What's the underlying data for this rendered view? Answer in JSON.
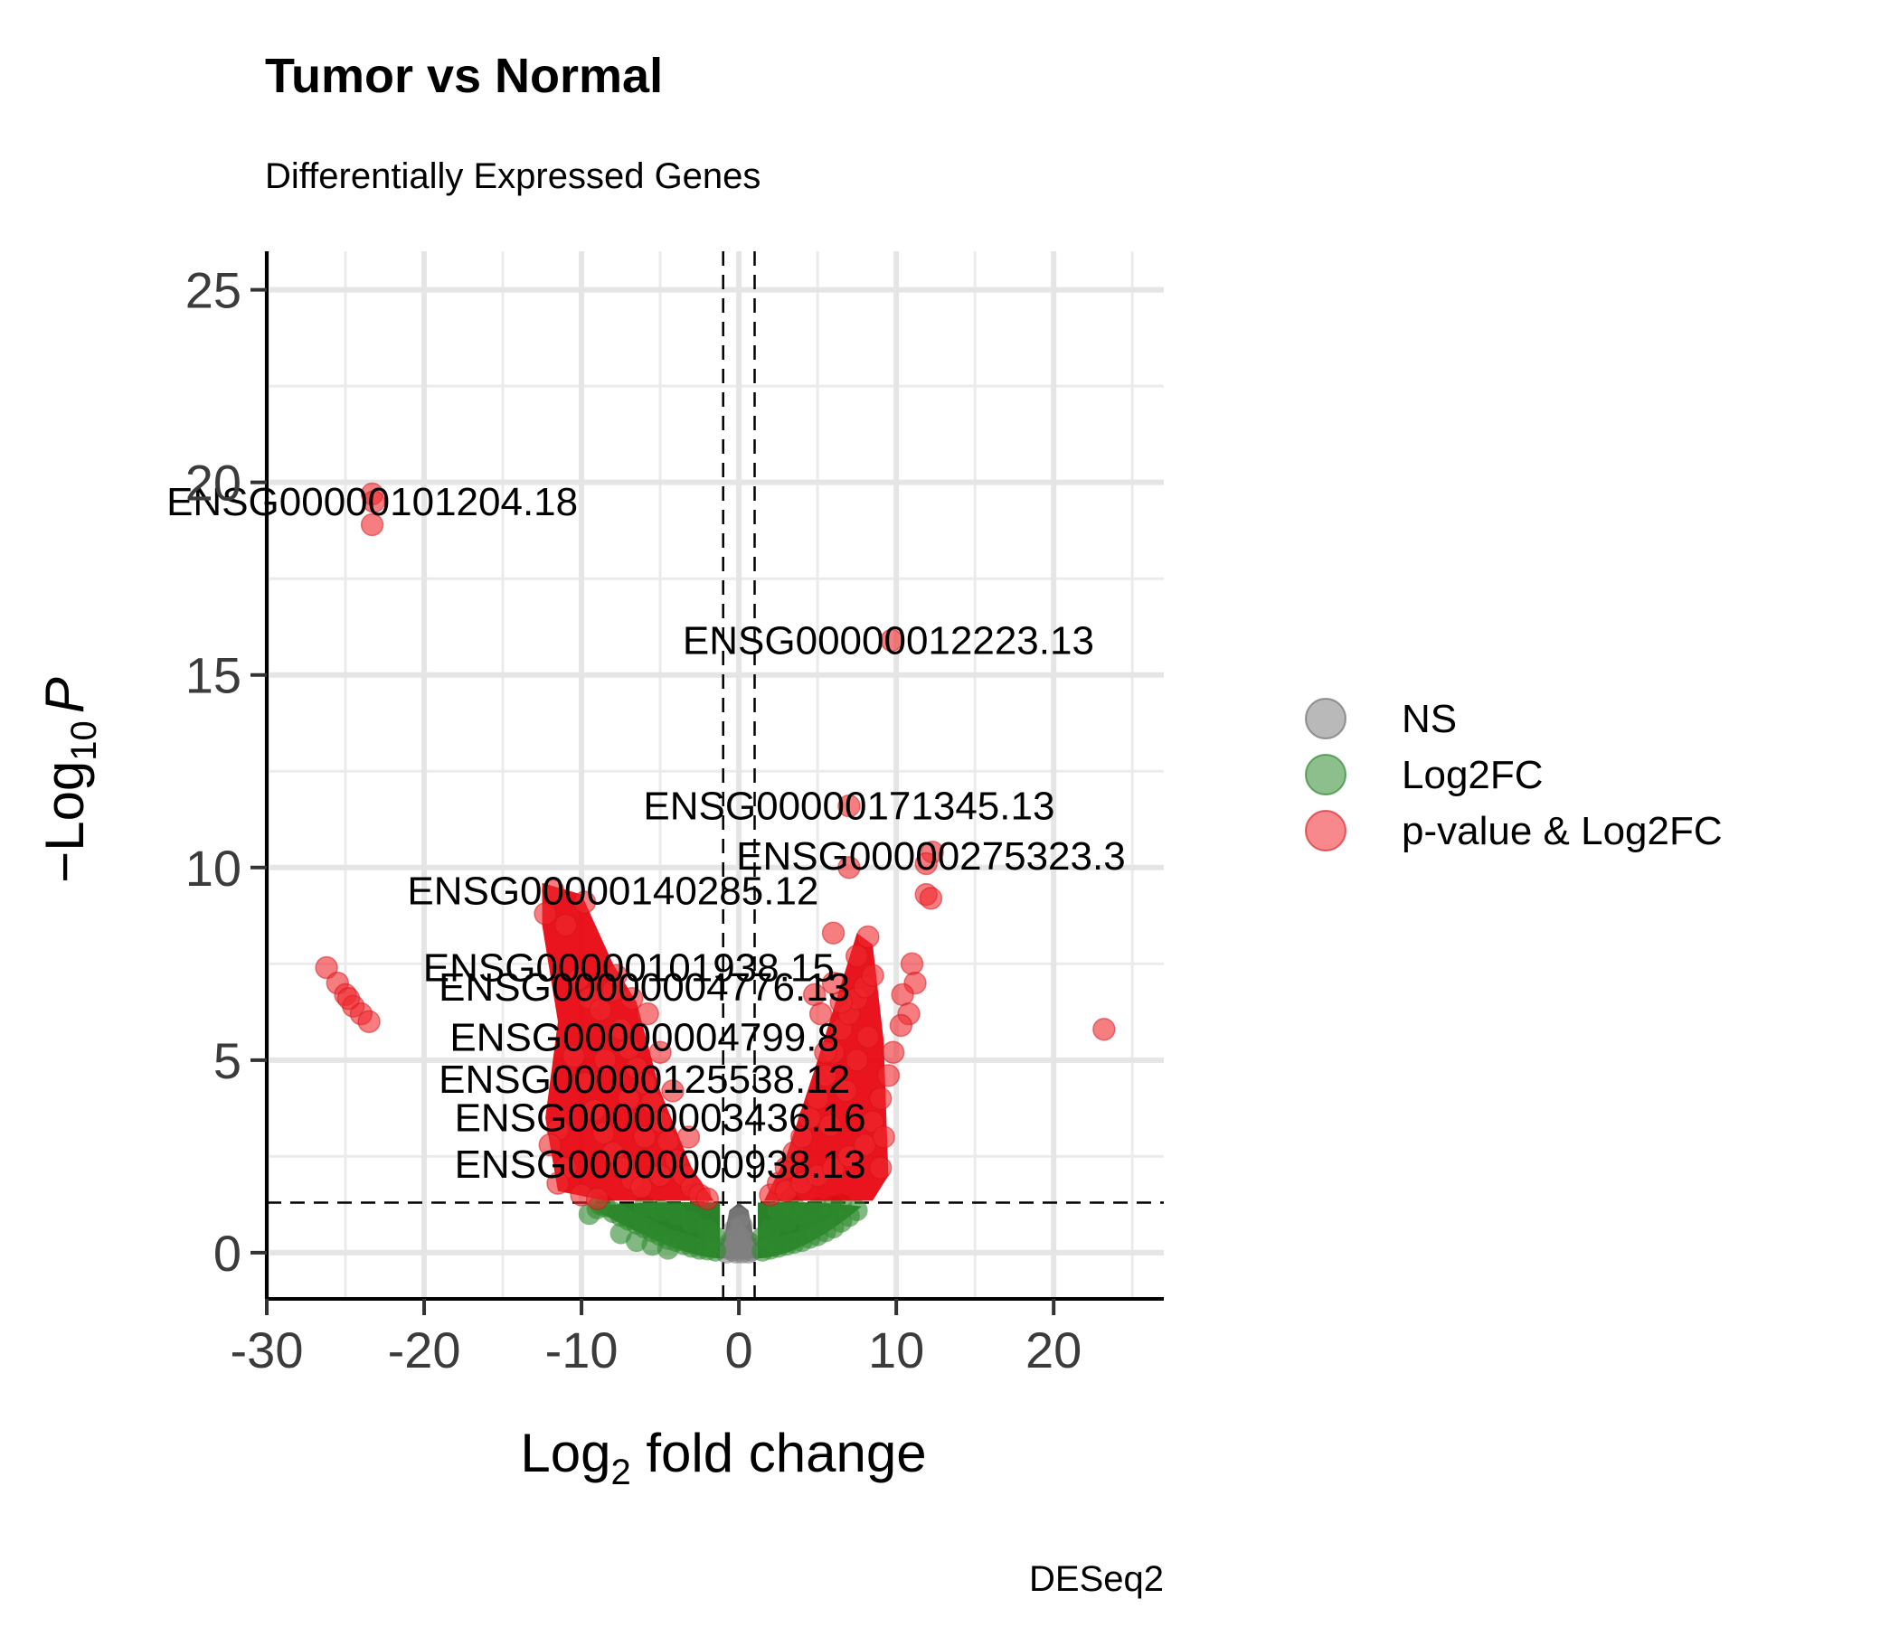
{
  "chart_data": {
    "type": "scatter",
    "title": "Tumor vs Normal",
    "subtitle": "Differentially Expressed Genes",
    "caption": "DESeq2",
    "xlabel": {
      "base": "Log",
      "sub": "2",
      "rest": " fold change"
    },
    "ylabel": {
      "prefix": "−Log",
      "sub": "10",
      "italic": "P"
    },
    "xlim": [
      -30,
      27
    ],
    "ylim": [
      -1.2,
      26
    ],
    "xticks": [
      -30,
      -20,
      -10,
      0,
      10,
      20
    ],
    "xtick_labels": [
      "-30",
      "-20",
      "-10",
      "0",
      "10",
      "20"
    ],
    "yticks": [
      0,
      5,
      10,
      15,
      20,
      25
    ],
    "ytick_labels": [
      "0",
      "5",
      "10",
      "15",
      "20",
      "25"
    ],
    "grid": true,
    "cutoffs": {
      "log2fc": [
        -1,
        1
      ],
      "neg_log10_p": 1.3
    },
    "legend": {
      "position": "right",
      "items": [
        {
          "label": "NS",
          "color": "#808080"
        },
        {
          "label": "Log2FC",
          "color": "#2e8b2e"
        },
        {
          "label": "p-value & Log2FC",
          "color": "#f0282d"
        }
      ]
    },
    "labeled_points": [
      {
        "label": "ENSG00000101204.18",
        "x": -23.3,
        "y": 19.5
      },
      {
        "label": "ENSG00000012223.13",
        "x": 9.5,
        "y": 15.9
      },
      {
        "label": "ENSG00000171345.13",
        "x": 7.0,
        "y": 11.6
      },
      {
        "label": "ENSG00000275323.3",
        "x": 12.2,
        "y": 10.3
      },
      {
        "label": "ENSG00000140285.12",
        "x": -8.0,
        "y": 9.4
      },
      {
        "label": "ENSG00000101938.15",
        "x": -7.0,
        "y": 7.4
      },
      {
        "label": "ENSG00000004776.13",
        "x": -6.0,
        "y": 6.9
      },
      {
        "label": "ENSG00000004799.8",
        "x": -6.0,
        "y": 5.6
      },
      {
        "label": "ENSG00000125538.12",
        "x": -6.0,
        "y": 4.5
      },
      {
        "label": "ENSG00000003436.16",
        "x": -5.0,
        "y": 3.5
      },
      {
        "label": "ENSG00000000938.13",
        "x": -5.0,
        "y": 2.3
      }
    ],
    "series": [
      {
        "name": "p-value & Log2FC",
        "points": [
          [
            -23.3,
            19.7
          ],
          [
            -23.2,
            19.5
          ],
          [
            -23.3,
            18.9
          ],
          [
            9.7,
            15.9
          ],
          [
            7.0,
            11.6
          ],
          [
            12.3,
            10.4
          ],
          [
            11.9,
            10.1
          ],
          [
            7.0,
            10.0
          ],
          [
            -11.8,
            9.4
          ],
          [
            -12.3,
            8.8
          ],
          [
            -9.8,
            9.1
          ],
          [
            11.9,
            9.3
          ],
          [
            12.2,
            9.2
          ],
          [
            -11.0,
            8.5
          ],
          [
            6.0,
            8.3
          ],
          [
            8.2,
            8.2
          ],
          [
            7.5,
            7.7
          ],
          [
            11.0,
            7.5
          ],
          [
            11.2,
            7.0
          ],
          [
            10.4,
            6.7
          ],
          [
            -26.2,
            7.4
          ],
          [
            -25.5,
            7.0
          ],
          [
            -25.0,
            6.7
          ],
          [
            -24.5,
            6.4
          ],
          [
            -24.0,
            6.2
          ],
          [
            -23.5,
            6.0
          ],
          [
            -24.8,
            6.6
          ],
          [
            23.2,
            5.8
          ],
          [
            10.8,
            6.2
          ],
          [
            10.3,
            5.9
          ],
          [
            9.8,
            5.2
          ],
          [
            9.5,
            4.6
          ],
          [
            -10.2,
            7.1
          ],
          [
            -9.5,
            6.6
          ],
          [
            -8.8,
            6.3
          ],
          [
            -8.0,
            6.8
          ],
          [
            -7.5,
            5.8
          ],
          [
            -7.0,
            5.3
          ],
          [
            -6.5,
            4.8
          ],
          [
            -6.0,
            4.4
          ],
          [
            -5.5,
            3.9
          ],
          [
            -5.0,
            3.4
          ],
          [
            -4.5,
            2.9
          ],
          [
            -4.0,
            2.4
          ],
          [
            -3.5,
            2.0
          ],
          [
            -3.0,
            1.7
          ],
          [
            -2.5,
            1.5
          ],
          [
            -2.0,
            1.4
          ],
          [
            -10.5,
            5.1
          ],
          [
            -9.8,
            4.4
          ],
          [
            -9.2,
            3.7
          ],
          [
            -8.6,
            3.1
          ],
          [
            -8.0,
            2.6
          ],
          [
            -7.4,
            2.2
          ],
          [
            -6.8,
            1.9
          ],
          [
            -6.2,
            1.7
          ],
          [
            -11.5,
            3.2
          ],
          [
            -12.0,
            2.8
          ],
          [
            -11.0,
            2.2
          ],
          [
            -11.5,
            1.8
          ],
          [
            -10.0,
            1.5
          ],
          [
            -9.0,
            1.4
          ],
          [
            -7.0,
            4.0
          ],
          [
            -6.0,
            3.0
          ],
          [
            -5.0,
            2.0
          ],
          [
            -8.5,
            5.0
          ],
          [
            -7.8,
            7.2
          ],
          [
            -6.8,
            6.6
          ],
          [
            -5.8,
            6.2
          ],
          [
            -5.0,
            5.2
          ],
          [
            -4.2,
            4.2
          ],
          [
            -3.2,
            3.0
          ],
          [
            2.0,
            1.5
          ],
          [
            2.5,
            1.8
          ],
          [
            3.0,
            2.2
          ],
          [
            3.5,
            2.6
          ],
          [
            4.0,
            3.0
          ],
          [
            4.5,
            3.5
          ],
          [
            5.0,
            4.0
          ],
          [
            5.5,
            4.6
          ],
          [
            6.0,
            5.2
          ],
          [
            6.5,
            5.8
          ],
          [
            7.0,
            6.2
          ],
          [
            7.5,
            6.6
          ],
          [
            8.0,
            6.9
          ],
          [
            8.5,
            7.2
          ],
          [
            3.0,
            1.6
          ],
          [
            4.0,
            1.8
          ],
          [
            5.0,
            2.0
          ],
          [
            6.0,
            2.2
          ],
          [
            7.0,
            2.5
          ],
          [
            8.0,
            2.8
          ],
          [
            8.5,
            3.4
          ],
          [
            9.0,
            4.0
          ],
          [
            9.2,
            3.0
          ],
          [
            9.0,
            2.2
          ],
          [
            5.5,
            5.2
          ],
          [
            6.5,
            6.5
          ],
          [
            5.8,
            3.3
          ],
          [
            6.8,
            4.2
          ],
          [
            7.5,
            5.0
          ],
          [
            8.2,
            5.6
          ],
          [
            4.8,
            6.7
          ],
          [
            5.2,
            6.2
          ],
          [
            6.0,
            7.0
          ]
        ]
      },
      {
        "name": "Log2FC",
        "points": [
          [
            -9.0,
            1.15
          ],
          [
            -8.5,
            1.2
          ],
          [
            -8.0,
            1.05
          ],
          [
            -7.5,
            0.95
          ],
          [
            -7.0,
            0.85
          ],
          [
            -6.5,
            0.75
          ],
          [
            -6.0,
            0.65
          ],
          [
            -5.5,
            0.55
          ],
          [
            -5.0,
            0.45
          ],
          [
            -4.5,
            0.35
          ],
          [
            -4.0,
            0.3
          ],
          [
            -3.5,
            0.22
          ],
          [
            -3.0,
            0.15
          ],
          [
            -2.5,
            0.1
          ],
          [
            -2.0,
            0.08
          ],
          [
            -1.5,
            0.05
          ],
          [
            -6.0,
            1.2
          ],
          [
            -5.0,
            1.1
          ],
          [
            -4.0,
            1.0
          ],
          [
            -3.0,
            0.8
          ],
          [
            -2.0,
            0.6
          ],
          [
            -1.5,
            0.4
          ],
          [
            -7.5,
            0.5
          ],
          [
            -6.5,
            0.3
          ],
          [
            -5.5,
            0.2
          ],
          [
            -4.5,
            0.1
          ],
          [
            1.5,
            0.05
          ],
          [
            2.0,
            0.1
          ],
          [
            2.5,
            0.15
          ],
          [
            3.0,
            0.2
          ],
          [
            3.5,
            0.25
          ],
          [
            4.0,
            0.3
          ],
          [
            4.5,
            0.38
          ],
          [
            5.0,
            0.45
          ],
          [
            5.5,
            0.55
          ],
          [
            6.0,
            0.65
          ],
          [
            6.5,
            0.8
          ],
          [
            7.0,
            0.95
          ],
          [
            7.5,
            1.1
          ],
          [
            2.0,
            0.6
          ],
          [
            3.0,
            0.8
          ],
          [
            4.0,
            1.0
          ],
          [
            5.0,
            1.15
          ],
          [
            6.0,
            1.2
          ],
          [
            1.5,
            0.4
          ],
          [
            2.5,
            1.1
          ],
          [
            3.5,
            1.2
          ],
          [
            4.5,
            0.7
          ],
          [
            5.5,
            0.9
          ],
          [
            6.5,
            1.25
          ],
          [
            -8.8,
            1.25
          ],
          [
            -9.5,
            1.0
          ]
        ]
      },
      {
        "name": "NS",
        "points": [
          [
            -0.8,
            0.0
          ],
          [
            -0.6,
            0.1
          ],
          [
            -0.4,
            0.05
          ],
          [
            -0.2,
            0.0
          ],
          [
            0.0,
            0.1
          ],
          [
            0.2,
            0.0
          ],
          [
            0.4,
            0.08
          ],
          [
            0.6,
            0.0
          ],
          [
            0.8,
            0.05
          ],
          [
            -0.5,
            0.3
          ],
          [
            0.0,
            0.4
          ],
          [
            0.5,
            0.3
          ],
          [
            -0.3,
            0.6
          ],
          [
            0.2,
            0.7
          ],
          [
            0.0,
            0.9
          ],
          [
            -0.7,
            0.2
          ],
          [
            0.7,
            0.25
          ],
          [
            -0.1,
            0.5
          ]
        ]
      }
    ]
  }
}
